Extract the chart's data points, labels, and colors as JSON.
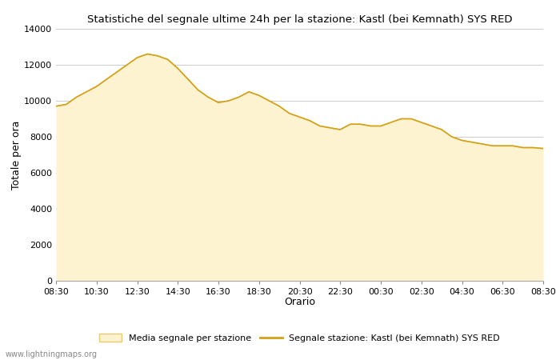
{
  "title": "Statistiche del segnale ultime 24h per la stazione: Kastl (bei Kemnath) SYS RED",
  "xlabel": "Orario",
  "ylabel": "Totale per ora",
  "xlim_labels": [
    "08:30",
    "10:30",
    "12:30",
    "14:30",
    "16:30",
    "18:30",
    "20:30",
    "22:30",
    "00:30",
    "02:30",
    "04:30",
    "06:30",
    "08:30"
  ],
  "ylim": [
    0,
    14000
  ],
  "yticks": [
    0,
    2000,
    4000,
    6000,
    8000,
    10000,
    12000,
    14000
  ],
  "fill_color": "#fdf3d0",
  "fill_edge_color": "#e8c96e",
  "line_color": "#d4a017",
  "background_color": "#ffffff",
  "grid_color": "#cccccc",
  "watermark": "www.lightningmaps.org",
  "legend_fill_label": "Media segnale per stazione",
  "legend_line_label": "Segnale stazione: Kastl (bei Kemnath) SYS RED",
  "x_values": [
    0,
    1,
    2,
    3,
    4,
    5,
    6,
    7,
    8,
    9,
    10,
    11,
    12,
    13,
    14,
    15,
    16,
    17,
    18,
    19,
    20,
    21,
    22,
    23,
    24,
    25,
    26,
    27,
    28,
    29,
    30,
    31,
    32,
    33,
    34,
    35,
    36,
    37,
    38,
    39,
    40,
    41,
    42,
    43,
    44,
    45,
    46,
    47,
    48
  ],
  "y_values": [
    9700,
    9800,
    10200,
    10500,
    10800,
    11200,
    11600,
    12000,
    12400,
    12600,
    12500,
    12300,
    11800,
    11200,
    10600,
    10200,
    9900,
    10000,
    10200,
    10500,
    10300,
    10000,
    9700,
    9300,
    9100,
    8900,
    8600,
    8500,
    8400,
    8700,
    8700,
    8600,
    8600,
    8800,
    9000,
    9000,
    8800,
    8600,
    8400,
    8000,
    7800,
    7700,
    7600,
    7500,
    7500,
    7500,
    7400,
    7400,
    7350
  ]
}
